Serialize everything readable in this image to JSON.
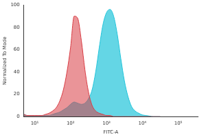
{
  "chart_data": {
    "type": "line",
    "x_label": "FITC-A",
    "y_label": "Normalized To Mode",
    "x": [
      5,
      6.3,
      7.9,
      10,
      12.6,
      15.8,
      20,
      25.1,
      31.6,
      39.8,
      50.1,
      63.1,
      79.4,
      100,
      126,
      158,
      200,
      251,
      316,
      398,
      501,
      631,
      794,
      1000,
      1259,
      1585,
      1995,
      2512,
      3162,
      3981,
      5012,
      6310,
      7943,
      10000,
      12589,
      15849,
      19953,
      25119,
      31623
    ],
    "series": [
      {
        "color": "#d83c44",
        "values": [
          2,
          1,
          1,
          1,
          1,
          1,
          2,
          3,
          5,
          8,
          14,
          24,
          40,
          62,
          90,
          88,
          68,
          42,
          22,
          10,
          5,
          3,
          2,
          1,
          1,
          0,
          0,
          0,
          0,
          0,
          0,
          0,
          0,
          0,
          0,
          0,
          0,
          0,
          0
        ]
      },
      {
        "color": "#22c4da",
        "values": [
          2,
          1,
          1,
          1,
          1,
          1,
          1,
          1,
          2,
          3,
          4,
          6,
          8,
          11,
          13,
          12,
          11,
          12,
          16,
          24,
          40,
          62,
          82,
          93,
          96,
          90,
          74,
          52,
          32,
          18,
          9,
          5,
          3,
          1.5,
          1,
          0.5,
          0,
          0,
          0
        ]
      }
    ],
    "log": "x",
    "xlim": [
      5,
      350000
    ],
    "xticks": [
      {
        "value": 10,
        "label": "10¹"
      },
      {
        "value": 100,
        "label": "10²"
      },
      {
        "value": 1000,
        "label": "10³"
      },
      {
        "value": 10000,
        "label": "10⁴"
      },
      {
        "value": 100000,
        "label": "10⁵"
      }
    ],
    "ylim": [
      0,
      100
    ],
    "yticks": [
      0,
      20,
      40,
      60,
      80,
      100
    ],
    "grid": false
  }
}
